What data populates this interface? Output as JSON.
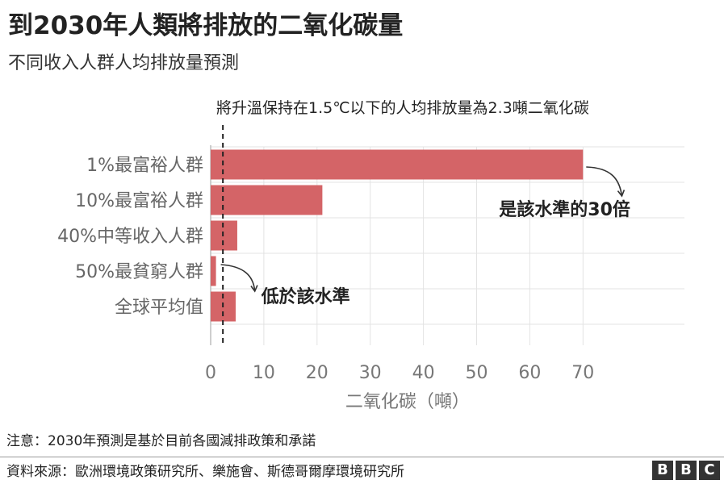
{
  "header": {
    "title": "到2030年人類將排放的二氧化碳量",
    "subtitle": "不同收入人群人均排放量預測"
  },
  "colors": {
    "bar": "#d46467",
    "grid": "#e3e3e3",
    "threshold": "#222222",
    "tick_text": "#777777",
    "label_text": "#666666"
  },
  "chart_data": {
    "type": "bar",
    "orientation": "horizontal",
    "categories": [
      "1%最富裕人群",
      "10%最富裕人群",
      "40%中等收入人群",
      "50%最貧窮人群",
      "全球平均值"
    ],
    "values": [
      70,
      21,
      5,
      1,
      4.7
    ],
    "xlabel": "二氧化碳（噸）",
    "xlim": [
      0,
      75
    ],
    "xticks": [
      0,
      10,
      20,
      30,
      40,
      50,
      60,
      70
    ],
    "grid": true,
    "threshold": {
      "value": 2.3,
      "label": "將升溫保持在1.5℃以下的人均排放量為2.3噸二氧化碳"
    },
    "annotations": [
      {
        "text": "是該水準的30倍",
        "category_index": 0
      },
      {
        "text": "低於該水準",
        "category_index": 3
      }
    ]
  },
  "footer": {
    "note": "注意：2030年預測是基於目前各國減排政策和承諾",
    "source": "資料來源：歐洲環境政策研究所、樂施會、斯德哥爾摩環境研究所",
    "logo_letters": [
      "B",
      "B",
      "C"
    ]
  }
}
